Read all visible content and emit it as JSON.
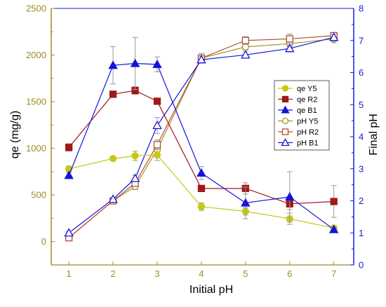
{
  "chart_data": {
    "type": "line",
    "xlabel": "Initial pH",
    "ylabel_left": "qe (mg/g)",
    "ylabel_right": "Final pH",
    "x_ticks": [
      "1",
      "2",
      "3",
      "4",
      "5",
      "6",
      "7"
    ],
    "y_left_ticks": [
      "0",
      "500",
      "1000",
      "1500",
      "2000",
      "2500"
    ],
    "y_right_ticks": [
      "0",
      "1",
      "2",
      "3",
      "4",
      "5",
      "6",
      "7",
      "8"
    ],
    "xlim": [
      0.6,
      7.45
    ],
    "ylim_left": [
      -250,
      2500
    ],
    "ylim_right": [
      0,
      8
    ],
    "grid": false,
    "legend_position": "right-center",
    "colors": {
      "left_axis": "#a08c20",
      "right_axis": "#1a1adc",
      "Y5": "#c8c814",
      "Y5_line": "#a8902a",
      "R2": "#a01818",
      "R2_line": "#b05030",
      "B1": "#1414dc"
    },
    "x": [
      1,
      2,
      2.5,
      3,
      4,
      5,
      6,
      7
    ],
    "series": [
      {
        "name": "qe Y5",
        "axis": "left",
        "marker": "circle-filled",
        "color": "Y5",
        "values": [
          780,
          890,
          920,
          930,
          375,
          325,
          245,
          145
        ],
        "errors": [
          30,
          20,
          50,
          60,
          40,
          40,
          60,
          30
        ]
      },
      {
        "name": "qe R2",
        "axis": "left",
        "marker": "square-filled",
        "color": "R2",
        "values": [
          1010,
          1580,
          1620,
          1505,
          570,
          570,
          405,
          430
        ],
        "errors": [
          40,
          30,
          40,
          30,
          20,
          60,
          60,
          170
        ]
      },
      {
        "name": "qe B1",
        "axis": "left",
        "marker": "triangle-filled",
        "color": "B1",
        "values": [
          710,
          1890,
          1910,
          1900,
          735,
          415,
          480,
          130
        ],
        "errors": [
          30,
          200,
          280,
          80,
          70,
          170,
          270,
          20
        ]
      },
      {
        "name": "pH Y5",
        "axis": "right",
        "marker": "circle-open",
        "color": "Y5_line",
        "values": [
          0.85,
          2.0,
          2.45,
          3.6,
          6.45,
          6.8,
          6.9,
          7.05
        ],
        "errors": [
          0.05,
          0.05,
          0.1,
          0.15,
          0.1,
          0.1,
          0.1,
          0.12
        ]
      },
      {
        "name": "pH R2",
        "axis": "right",
        "marker": "square-open",
        "color": "R2_line",
        "values": [
          0.85,
          2.0,
          2.55,
          3.75,
          6.45,
          7.0,
          7.05,
          7.15
        ],
        "errors": [
          0.05,
          0.05,
          0.1,
          0.15,
          0.15,
          0.12,
          0.15,
          0.1
        ]
      },
      {
        "name": "pH B1",
        "axis": "right",
        "marker": "triangle-open",
        "color": "B1",
        "values": [
          1.0,
          2.05,
          2.7,
          4.35,
          6.4,
          6.55,
          6.75,
          7.1
        ],
        "errors": [
          0.05,
          0.05,
          0.1,
          0.25,
          0.1,
          0.1,
          0.1,
          0.1
        ]
      }
    ]
  }
}
